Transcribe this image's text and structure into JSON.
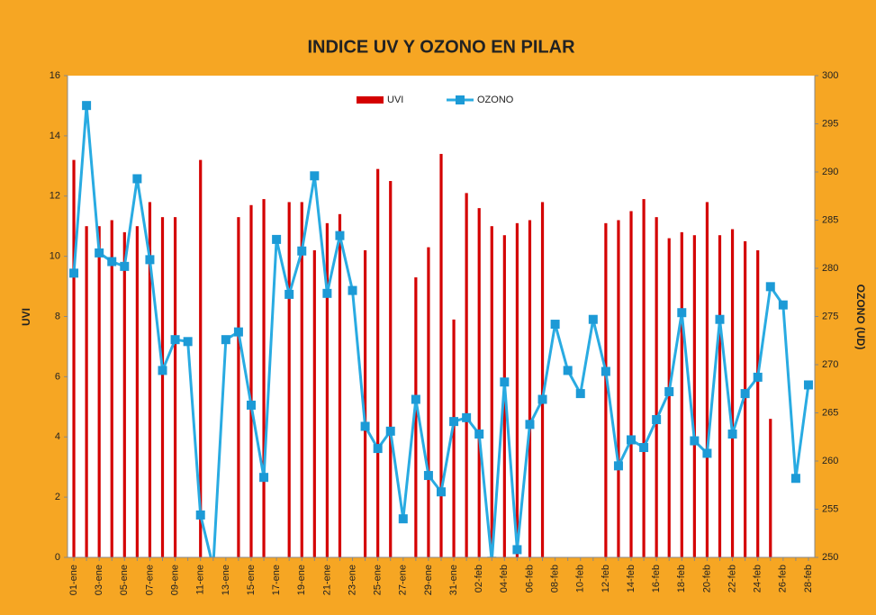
{
  "chart_data": {
    "type": "bar-line",
    "title": "INDICE UV Y OZONO EN PILAR",
    "ylabel": "UVI",
    "y2label": "OZONO (UD)",
    "categories": [
      "01-ene",
      null,
      "03-ene",
      null,
      "05-ene",
      null,
      "07-ene",
      null,
      "09-ene",
      null,
      "11-ene",
      null,
      "13-ene",
      null,
      "15-ene",
      null,
      "17-ene",
      null,
      "19-ene",
      null,
      "21-ene",
      null,
      "23-ene",
      null,
      "25-ene",
      null,
      "27-ene",
      null,
      "29-ene",
      null,
      "31-ene",
      null,
      "02-feb",
      null,
      "04-feb",
      null,
      "06-feb",
      null,
      "08-feb",
      null,
      "10-feb",
      null,
      "12-feb",
      null,
      "14-feb",
      null,
      "16-feb",
      null,
      "18-feb",
      null,
      "20-feb",
      null,
      "22-feb",
      null,
      "24-feb",
      null,
      "26-feb",
      null,
      "28-feb"
    ],
    "series": [
      {
        "name": "UVI",
        "color": "#d40000",
        "kind": "bar",
        "values": [
          13.2,
          11.0,
          11.0,
          11.2,
          10.8,
          11.0,
          11.8,
          11.3,
          11.3,
          null,
          13.2,
          null,
          null,
          11.3,
          11.7,
          11.9,
          null,
          11.8,
          11.8,
          10.2,
          11.1,
          11.4,
          null,
          10.2,
          12.9,
          12.5,
          null,
          9.3,
          10.3,
          13.4,
          7.9,
          12.1,
          11.6,
          11.0,
          10.7,
          11.1,
          11.2,
          11.8,
          null,
          null,
          null,
          null,
          11.1,
          11.2,
          11.5,
          11.9,
          11.3,
          10.6,
          10.8,
          10.7,
          11.8,
          10.7,
          10.9,
          10.5,
          10.2,
          4.6,
          null,
          null,
          null
        ]
      },
      {
        "name": "OZONO",
        "color": "#29abe2",
        "kind": "line",
        "axis": "y2",
        "values": [
          279.5,
          296.9,
          281.6,
          280.7,
          280.2,
          289.3,
          280.9,
          269.4,
          272.6,
          272.4,
          254.4,
          249.0,
          272.6,
          273.4,
          265.8,
          258.3,
          283.0,
          277.3,
          281.8,
          289.6,
          277.4,
          283.4,
          277.7,
          263.6,
          261.3,
          263.1,
          254.0,
          266.4,
          258.5,
          256.8,
          264.1,
          264.5,
          262.8,
          249.6,
          268.2,
          250.8,
          263.8,
          266.4,
          274.2,
          269.4,
          267.0,
          274.7,
          269.3,
          259.5,
          262.2,
          261.4,
          264.3,
          267.2,
          275.4,
          262.1,
          260.8,
          274.7,
          262.8,
          267.0,
          268.7,
          278.1,
          276.2,
          258.2,
          267.9
        ]
      }
    ],
    "ylim": [
      0,
      16
    ],
    "yticks": [
      0,
      2,
      4,
      6,
      8,
      10,
      12,
      14,
      16
    ],
    "y2lim": [
      250,
      300
    ],
    "y2ticks": [
      250,
      255,
      260,
      265,
      270,
      275,
      280,
      285,
      290,
      295,
      300
    ],
    "grid": false,
    "legend": "top"
  }
}
